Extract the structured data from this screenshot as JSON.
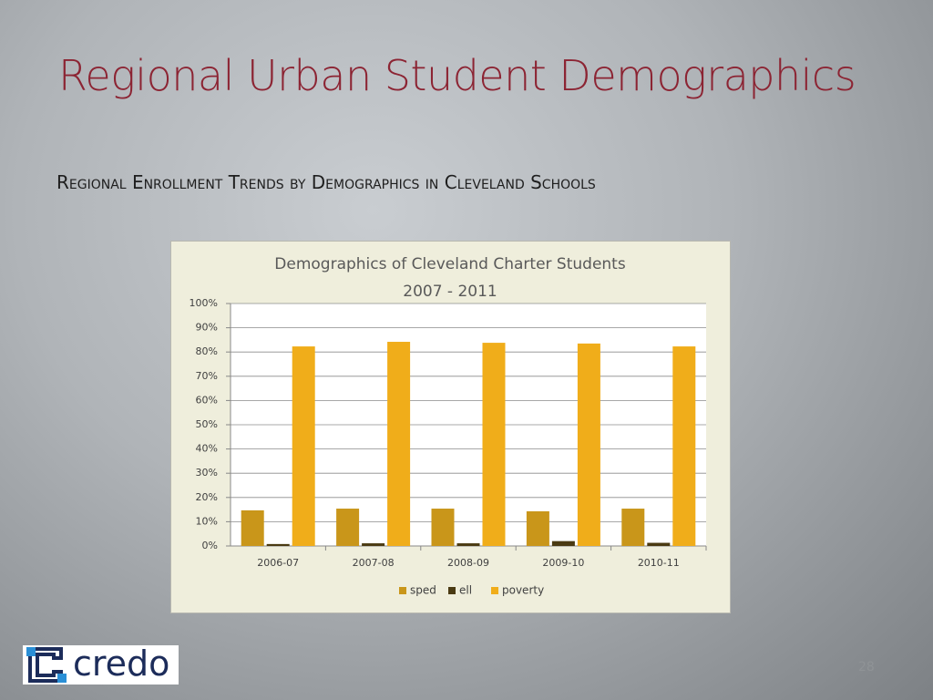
{
  "slide": {
    "title": "Regional Urban Student Demographics",
    "subtitle": "Regional Enrollment Trends by Demographics in Cleveland Schools",
    "logo_text": "credo",
    "page_number": "28"
  },
  "chart_data": {
    "type": "bar",
    "title": "Demographics of Cleveland Charter Students",
    "subtitle": "2007 - 2011",
    "categories": [
      "2006-07",
      "2007-08",
      "2008-09",
      "2009-10",
      "2010-11"
    ],
    "series": [
      {
        "name": "sped",
        "color": "#c9961a",
        "values": [
          14.7,
          15.4,
          15.4,
          14.3,
          15.4
        ]
      },
      {
        "name": "ell",
        "color": "#4a3a12",
        "values": [
          0.8,
          1.1,
          1.1,
          2,
          1.3
        ]
      },
      {
        "name": "poverty",
        "color": "#f0ad1a",
        "values": [
          82.3,
          84.2,
          83.8,
          83.5,
          82.3
        ]
      }
    ],
    "ylim": [
      0,
      100
    ],
    "yticks": [
      {
        "value": 0,
        "label": "0%"
      },
      {
        "value": 10,
        "label": "10%"
      },
      {
        "value": 20,
        "label": "20%"
      },
      {
        "value": 30,
        "label": "30%"
      },
      {
        "value": 40,
        "label": "40%"
      },
      {
        "value": 50,
        "label": "50%"
      },
      {
        "value": 60,
        "label": "60%"
      },
      {
        "value": 70,
        "label": "70%"
      },
      {
        "value": 80,
        "label": "80%"
      },
      {
        "value": 90,
        "label": "90%"
      },
      {
        "value": 100,
        "label": "100%"
      }
    ],
    "grid": true,
    "legend": "bottom"
  }
}
